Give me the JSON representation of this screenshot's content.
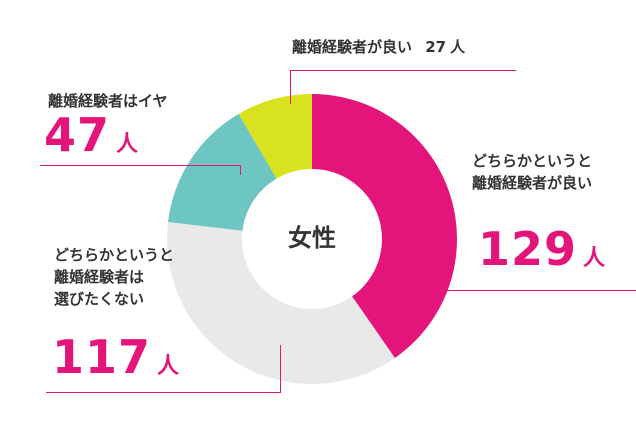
{
  "chart_data": {
    "type": "donut",
    "center_label": "女性",
    "series": [
      {
        "label_lines": [
          "どちらかというと",
          "離婚経験者が良い"
        ],
        "value": "129",
        "unit": "人",
        "color": "#e4157a"
      },
      {
        "label_lines": [
          "どちらかというと",
          "離婚経験者は",
          "選びたくない"
        ],
        "value": "117",
        "unit": "人",
        "color": "#e9e9e9"
      },
      {
        "label_lines": [
          "離婚経験者はイヤ"
        ],
        "value": "47",
        "unit": "人",
        "color": "#6dc6c1"
      },
      {
        "label_lines": [
          "離婚経験者が良い"
        ],
        "value": "27",
        "unit": "人",
        "color": "#d8e21f"
      }
    ]
  }
}
